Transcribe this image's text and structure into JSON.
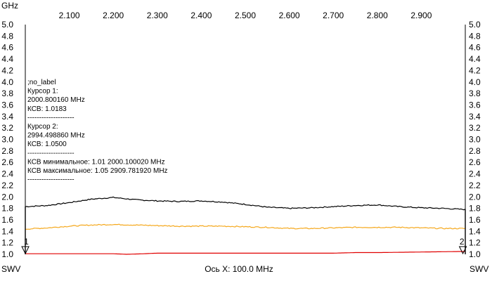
{
  "chart_data": {
    "type": "line",
    "x_unit_label": "GHz",
    "xlim": [
      2.0,
      3.0
    ],
    "ylim": [
      1.0,
      5.0
    ],
    "x_top_ticks": [
      "2.100",
      "2.200",
      "2.300",
      "2.400",
      "2.500",
      "2.600",
      "2.700",
      "2.800",
      "2.900"
    ],
    "y_ticks": [
      "5.0",
      "4.8",
      "4.6",
      "4.4",
      "4.2",
      "4.0",
      "3.8",
      "3.6",
      "3.4",
      "3.2",
      "3.0",
      "2.8",
      "2.6",
      "2.4",
      "2.2",
      "2.0",
      "1.8",
      "1.6",
      "1.4",
      "1.2",
      "1.0"
    ],
    "left_axis_label": "SWV",
    "right_axis_label": "SWV",
    "xlabel": "Ось X: 100.0 MHz",
    "grid": false,
    "markers": [
      {
        "label": "1",
        "x": 2.0001
      },
      {
        "label": "2",
        "x": 2.9945
      }
    ],
    "annotations": [
      ";no_label",
      "Курсор 1:",
      "2000.800160 MHz",
      "КСВ: 1.0183",
      "--------------------",
      "Курсор 2:",
      "2994.498860 MHz",
      "КСВ: 1.0500",
      "--------------------",
      "КСВ минимальное: 1.01  2000.100020 MHz",
      "КСВ максимальное: 1.05  2909.781920 MHz",
      "--------------------"
    ],
    "series": [
      {
        "color": "#000000",
        "x": [
          2.0,
          2.05,
          2.1,
          2.15,
          2.2,
          2.25,
          2.3,
          2.35,
          2.4,
          2.45,
          2.5,
          2.55,
          2.6,
          2.65,
          2.7,
          2.75,
          2.8,
          2.85,
          2.9,
          2.95,
          3.0
        ],
        "values": [
          1.83,
          1.85,
          1.9,
          1.96,
          1.99,
          1.95,
          1.93,
          1.92,
          1.93,
          1.91,
          1.87,
          1.82,
          1.8,
          1.81,
          1.83,
          1.85,
          1.86,
          1.83,
          1.81,
          1.8,
          1.78
        ]
      },
      {
        "color": "#f5a81c",
        "x": [
          2.0,
          2.05,
          2.1,
          2.15,
          2.2,
          2.25,
          2.3,
          2.35,
          2.4,
          2.45,
          2.5,
          2.55,
          2.6,
          2.65,
          2.7,
          2.75,
          2.8,
          2.85,
          2.9,
          2.95,
          3.0
        ],
        "values": [
          1.44,
          1.46,
          1.49,
          1.51,
          1.52,
          1.51,
          1.5,
          1.49,
          1.49,
          1.49,
          1.48,
          1.47,
          1.45,
          1.45,
          1.46,
          1.47,
          1.47,
          1.47,
          1.46,
          1.45,
          1.45
        ]
      },
      {
        "color": "#e00000",
        "x": [
          2.0,
          2.1,
          2.2,
          2.23,
          2.27,
          2.3,
          2.4,
          2.5,
          2.6,
          2.7,
          2.75,
          2.8,
          2.9,
          3.0
        ],
        "values": [
          1.01,
          1.01,
          1.01,
          1.0,
          1.01,
          1.02,
          1.02,
          1.02,
          1.02,
          1.02,
          1.03,
          1.03,
          1.04,
          1.05
        ]
      }
    ]
  }
}
